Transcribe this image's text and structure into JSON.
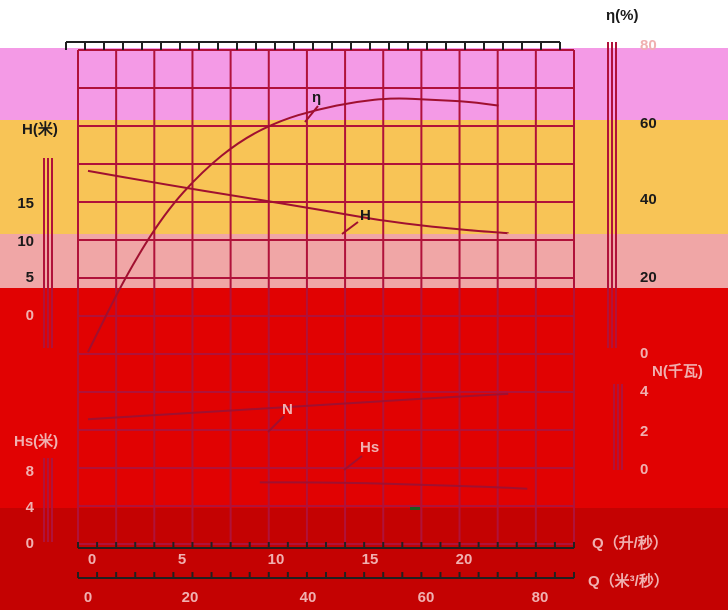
{
  "chart_data": {
    "type": "line",
    "title": "",
    "axes": {
      "x_bottom_1": {
        "label": "Q（升/秒）",
        "ticks": [
          "0",
          "5",
          "10",
          "15",
          "20"
        ],
        "range": [
          0,
          22
        ]
      },
      "x_bottom_2": {
        "label": "Q（米³/秒）",
        "ticks": [
          "0",
          "20",
          "40",
          "60",
          "80"
        ],
        "range": [
          0,
          79.2
        ]
      },
      "y_left_head": {
        "label": "H(米)",
        "ticks": [
          "0",
          "5",
          "10",
          "15"
        ],
        "range": [
          0,
          20
        ]
      },
      "y_left_suction": {
        "label": "Hs(米)",
        "ticks": [
          "0",
          "4",
          "8"
        ],
        "range": [
          0,
          8
        ]
      },
      "y_right_efficiency": {
        "label": "η(%)",
        "ticks": [
          "20",
          "40",
          "60",
          "80"
        ],
        "range": [
          0,
          80
        ]
      },
      "y_right_power": {
        "label": "N(千瓦)",
        "ticks": [
          "0",
          "2",
          "4"
        ],
        "range": [
          0,
          4
        ]
      }
    },
    "series": [
      {
        "name": "η",
        "axis": "y_right_efficiency",
        "points": [
          [
            0,
            0
          ],
          [
            2,
            20
          ],
          [
            4,
            36
          ],
          [
            6,
            47
          ],
          [
            8,
            55
          ],
          [
            10,
            60
          ],
          [
            12,
            63
          ],
          [
            14,
            65
          ],
          [
            16,
            66
          ],
          [
            18,
            65.5
          ],
          [
            20,
            65
          ],
          [
            21.5,
            64
          ]
        ]
      },
      {
        "name": "H",
        "axis": "y_left_head",
        "points": [
          [
            0,
            14.7
          ],
          [
            4,
            13.3
          ],
          [
            8,
            12
          ],
          [
            12,
            10.7
          ],
          [
            16,
            9.3
          ],
          [
            20,
            8.5
          ],
          [
            22,
            8.2
          ]
        ]
      },
      {
        "name": "N",
        "axis": "y_right_power",
        "points": [
          [
            0,
            2.5
          ],
          [
            5,
            2.8
          ],
          [
            10,
            3.1
          ],
          [
            15,
            3.4
          ],
          [
            20,
            3.7
          ],
          [
            22,
            3.8
          ]
        ]
      },
      {
        "name": "Hs",
        "axis": "y_left_suction",
        "points": [
          [
            9,
            6.4
          ],
          [
            12,
            6.4
          ],
          [
            15,
            6.3
          ],
          [
            18,
            6.1
          ],
          [
            21,
            5.9
          ],
          [
            23,
            5.7
          ]
        ]
      }
    ],
    "grid": true,
    "bands": [
      {
        "color": "#f49ae6"
      },
      {
        "color": "#f8c456"
      },
      {
        "color": "#f0a6a6"
      },
      {
        "color": "#e10202"
      },
      {
        "color": "#c40202"
      }
    ],
    "colors": {
      "grid": "#b0123a",
      "curve": "#a01030",
      "text": "#1a1a1a",
      "soft_text": "#f0b0b0"
    }
  }
}
